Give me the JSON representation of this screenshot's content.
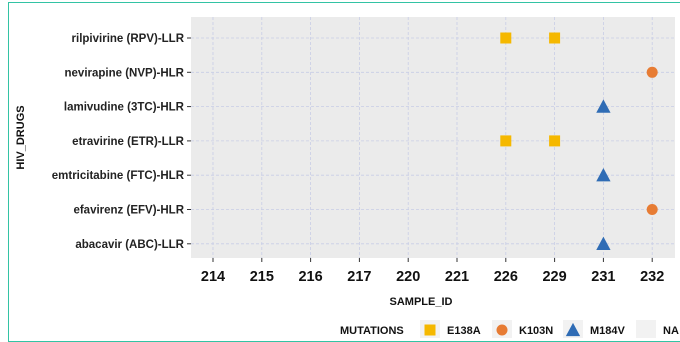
{
  "chart_data": {
    "type": "scatter",
    "xlabel": "SAMPLE_ID",
    "ylabel": "HIV_DRUGS",
    "x_categories": [
      "214",
      "215",
      "216",
      "217",
      "220",
      "221",
      "226",
      "229",
      "231",
      "232"
    ],
    "y_categories": [
      "rilpivirine (RPV)-LLR",
      "nevirapine (NVP)-HLR",
      "lamivudine (3TC)-HLR",
      "etravirine (ETR)-LLR",
      "emtricitabine (FTC)-HLR",
      "efavirenz (EFV)-HLR",
      "abacavir (ABC)-LLR"
    ],
    "legend": {
      "title": "MUTATIONS",
      "entries": [
        {
          "label": "E138A",
          "shape": "square",
          "color": "#f5b800"
        },
        {
          "label": "K103N",
          "shape": "circle",
          "color": "#e77c34"
        },
        {
          "label": "M184V",
          "shape": "triangle",
          "color": "#2f6cb5"
        },
        {
          "label": "NA",
          "shape": "none",
          "color": "#ebebeb"
        }
      ],
      "position": "bottom"
    },
    "points": [
      {
        "x": "226",
        "y": "rilpivirine (RPV)-LLR",
        "mutation": "E138A"
      },
      {
        "x": "229",
        "y": "rilpivirine (RPV)-LLR",
        "mutation": "E138A"
      },
      {
        "x": "232",
        "y": "nevirapine (NVP)-HLR",
        "mutation": "K103N"
      },
      {
        "x": "231",
        "y": "lamivudine (3TC)-HLR",
        "mutation": "M184V"
      },
      {
        "x": "226",
        "y": "etravirine (ETR)-LLR",
        "mutation": "E138A"
      },
      {
        "x": "229",
        "y": "etravirine (ETR)-LLR",
        "mutation": "E138A"
      },
      {
        "x": "231",
        "y": "emtricitabine (FTC)-HLR",
        "mutation": "M184V"
      },
      {
        "x": "232",
        "y": "efavirenz (EFV)-HLR",
        "mutation": "K103N"
      },
      {
        "x": "231",
        "y": "abacavir (ABC)-LLR",
        "mutation": "M184V"
      }
    ],
    "grid": true,
    "panel_background": "#ebebeb",
    "gridline_color": "#c8cde6"
  }
}
